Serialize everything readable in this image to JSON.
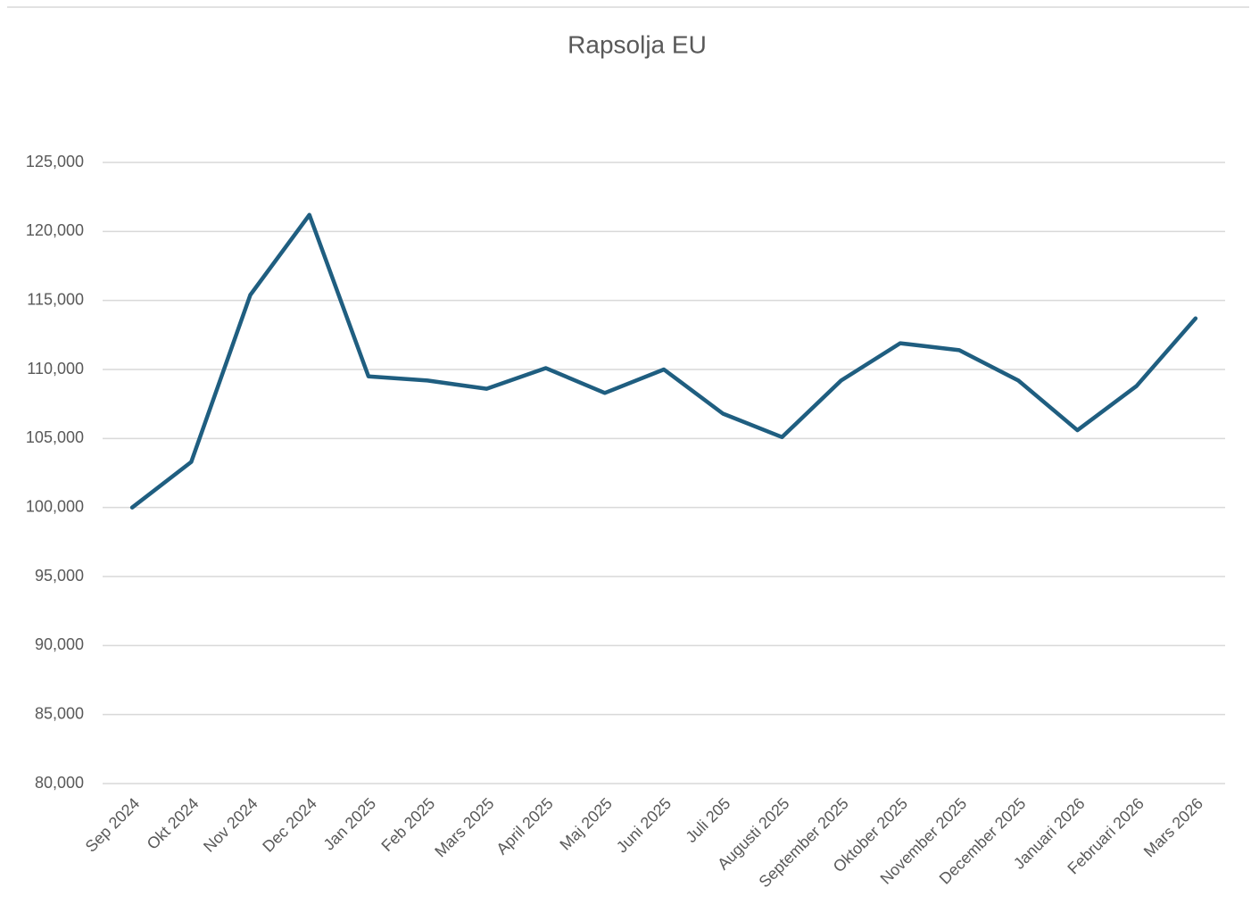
{
  "chart_data": {
    "type": "line",
    "title": "Rapsolja EU",
    "categories": [
      "Sep 2024",
      "Okt 2024",
      "Nov 2024",
      "Dec 2024",
      "Jan 2025",
      "Feb 2025",
      "Mars 2025",
      "April 2025",
      "Maj 2025",
      "Juni 2025",
      "Juli 205",
      "Augusti 2025",
      "September 2025",
      "Oktober 2025",
      "November 2025",
      "December 2025",
      "Januari 2026",
      "Februari 2026",
      "Mars 2026"
    ],
    "series": [
      {
        "name": "Rapsolja EU",
        "color": "#1f5e80",
        "values": [
          100000,
          103300,
          115400,
          121200,
          109500,
          109200,
          108600,
          110100,
          108300,
          110000,
          106800,
          105100,
          109200,
          111900,
          111400,
          109200,
          105600,
          108800,
          113700
        ]
      }
    ],
    "ylim": [
      80000,
      125000
    ],
    "yticks": [
      {
        "value": 80000,
        "label": "80,000"
      },
      {
        "value": 85000,
        "label": "85,000"
      },
      {
        "value": 90000,
        "label": "90,000"
      },
      {
        "value": 95000,
        "label": "95,000"
      },
      {
        "value": 100000,
        "label": "100,000"
      },
      {
        "value": 105000,
        "label": "105,000"
      },
      {
        "value": 110000,
        "label": "110,000"
      },
      {
        "value": 115000,
        "label": "115,000"
      },
      {
        "value": 120000,
        "label": "120,000"
      },
      {
        "value": 125000,
        "label": "125,000"
      }
    ],
    "grid": true
  }
}
